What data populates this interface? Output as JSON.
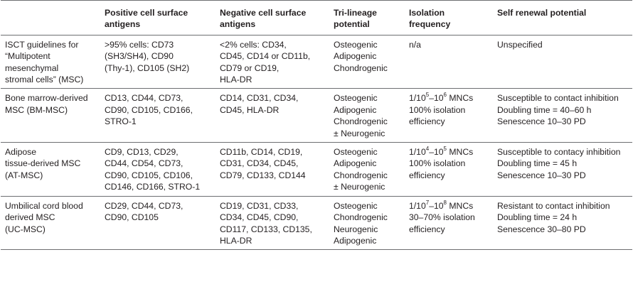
{
  "headers": [
    [
      "Positive cell surface",
      "antigens"
    ],
    [
      "Negative cell surface",
      "antigens"
    ],
    [
      "Tri-lineage",
      "potential"
    ],
    [
      "Isolation",
      "frequency"
    ],
    [
      "Self renewal potential"
    ]
  ],
  "rows": [
    {
      "type": [
        "ISCT guidelines for",
        "“Multipotent",
        "mesenchymal",
        "stromal cells” (MSC)"
      ],
      "positive": [
        ">95% cells: CD73",
        "(SH3/SH4), CD90",
        "(Thy-1), CD105 (SH2)"
      ],
      "negative": [
        "<2% cells: CD34,",
        "CD45, CD14 or CD11b,",
        "CD79 or CD19,",
        "HLA-DR"
      ],
      "trilineage": [
        "Osteogenic",
        "Adipogenic",
        "Chondrogenic"
      ],
      "isolation": {
        "plain": "n/a"
      },
      "renewal": [
        "Unspecified"
      ]
    },
    {
      "type": [
        "Bone marrow-derived",
        "MSC (BM-MSC)"
      ],
      "positive": [
        "CD13, CD44, CD73,",
        "CD90, CD105, CD166,",
        "STRO-1"
      ],
      "negative": [
        "CD14, CD31, CD34,",
        "CD45, HLA-DR"
      ],
      "trilineage": [
        "Osteogenic",
        "Adipogenic",
        "Chondrogenic",
        "± Neurogenic"
      ],
      "isolation": {
        "prefix": "1/10",
        "exp1": "5",
        "mid": "–10",
        "exp2": "6",
        "suffix": " MNCs",
        "lines": [
          "100% isolation",
          "efficiency"
        ]
      },
      "renewal": [
        "Susceptible to contact inhibition",
        "Doubling time = 40–60 h",
        "Senescence 10–30 PD"
      ]
    },
    {
      "type": [
        "Adipose",
        "tissue-derived MSC",
        "(AT-MSC)"
      ],
      "positive": [
        "CD9, CD13, CD29,",
        "CD44, CD54, CD73,",
        "CD90, CD105, CD106,",
        "CD146, CD166, STRO-1"
      ],
      "negative": [
        "CD11b, CD14, CD19,",
        "CD31, CD34, CD45,",
        "CD79, CD133, CD144"
      ],
      "trilineage": [
        "Osteogenic",
        "Adipogenic",
        "Chondrogenic",
        "± Neurogenic"
      ],
      "isolation": {
        "prefix": "1/10",
        "exp1": "4",
        "mid": "–10",
        "exp2": "5",
        "suffix": " MNCs",
        "lines": [
          "100% isolation",
          "efficiency"
        ]
      },
      "renewal": [
        "Susceptible to contacy inhibition",
        "Doubling time = 45 h",
        "Senescence 10–30 PD"
      ]
    },
    {
      "type": [
        "Umbilical cord blood",
        "derived MSC",
        "(UC-MSC)"
      ],
      "positive": [
        "CD29, CD44, CD73,",
        "CD90, CD105"
      ],
      "negative": [
        "CD19, CD31, CD33,",
        "CD34, CD45, CD90,",
        "CD117, CD133, CD135,",
        "HLA-DR"
      ],
      "trilineage": [
        "Osteogenic",
        "Chondrogenic",
        "Neurogenic",
        "Adipogenic"
      ],
      "isolation": {
        "prefix": "1/10",
        "exp1": "7",
        "mid": "–10",
        "exp2": "8",
        "suffix": " MNCs",
        "lines": [
          "30–70% isolation",
          "efficiency"
        ]
      },
      "renewal": [
        "Resistant to contact inhibition",
        "Doubling time = 24 h",
        "Senescence 30–80 PD"
      ]
    }
  ]
}
